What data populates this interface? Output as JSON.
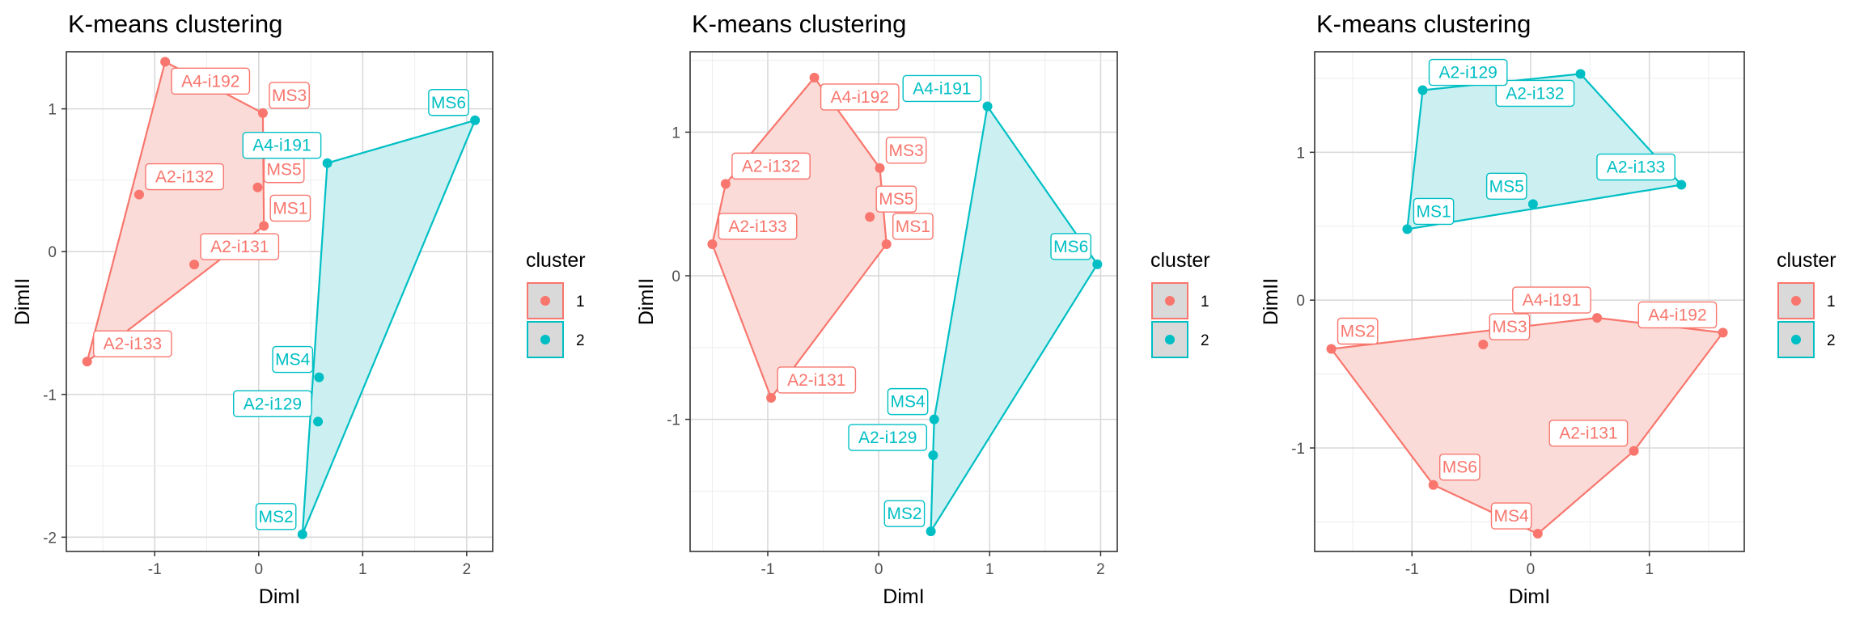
{
  "colors": {
    "cluster1": "#F8766D",
    "cluster2": "#00BFC4",
    "cluster1_fill": "#FADBD8",
    "cluster2_fill": "#CCF0F1",
    "grid_major": "#D9D9D9",
    "grid_minor": "#EDEDED",
    "axis": "#333333",
    "legend_key_bg": "#D9D9D9"
  },
  "chart_data": [
    {
      "type": "scatter",
      "title": "K-means clustering",
      "xlabel": "DimI",
      "ylabel": "DimII",
      "xlim": [
        -1.85,
        2.25
      ],
      "ylim": [
        -2.1,
        1.4
      ],
      "xticks": [
        -1,
        0,
        1,
        2
      ],
      "yticks": [
        -2,
        -1,
        0,
        1
      ],
      "grid": true,
      "legend": {
        "title": "cluster",
        "entries": [
          "1",
          "2"
        ],
        "position": "right"
      },
      "series": [
        {
          "name": "1",
          "points": [
            {
              "label": "A4-i192",
              "x": -0.9,
              "y": 1.33
            },
            {
              "label": "MS3",
              "x": 0.04,
              "y": 0.97
            },
            {
              "label": "MS5",
              "x": -0.01,
              "y": 0.45
            },
            {
              "label": "A2-i132",
              "x": -1.15,
              "y": 0.4
            },
            {
              "label": "MS1",
              "x": 0.05,
              "y": 0.18
            },
            {
              "label": "A2-i131",
              "x": -0.62,
              "y": -0.09
            },
            {
              "label": "A2-i133",
              "x": -1.65,
              "y": -0.77
            }
          ]
        },
        {
          "name": "2",
          "points": [
            {
              "label": "MS6",
              "x": 2.08,
              "y": 0.92
            },
            {
              "label": "A4-i191",
              "x": 0.66,
              "y": 0.62
            },
            {
              "label": "MS4",
              "x": 0.58,
              "y": -0.88
            },
            {
              "label": "A2-i129",
              "x": 0.57,
              "y": -1.19
            },
            {
              "label": "MS2",
              "x": 0.42,
              "y": -1.98
            }
          ]
        }
      ]
    },
    {
      "type": "scatter",
      "title": "K-means clustering",
      "xlabel": "DimI",
      "ylabel": "DimII",
      "xlim": [
        -1.7,
        2.15
      ],
      "ylim": [
        -1.92,
        1.56
      ],
      "xticks": [
        -1,
        0,
        1,
        2
      ],
      "yticks": [
        -1,
        0,
        1
      ],
      "grid": true,
      "legend": {
        "title": "cluster",
        "entries": [
          "1",
          "2"
        ],
        "position": "right"
      },
      "series": [
        {
          "name": "1",
          "points": [
            {
              "label": "A4-i192",
              "x": -0.58,
              "y": 1.38
            },
            {
              "label": "MS3",
              "x": 0.01,
              "y": 0.75
            },
            {
              "label": "A2-i132",
              "x": -1.38,
              "y": 0.64
            },
            {
              "label": "MS5",
              "x": -0.08,
              "y": 0.41
            },
            {
              "label": "A2-i133",
              "x": -1.5,
              "y": 0.22
            },
            {
              "label": "MS1",
              "x": 0.07,
              "y": 0.22
            },
            {
              "label": "A2-i131",
              "x": -0.97,
              "y": -0.85
            }
          ]
        },
        {
          "name": "2",
          "points": [
            {
              "label": "A4-i191",
              "x": 0.98,
              "y": 1.18
            },
            {
              "label": "MS6",
              "x": 1.97,
              "y": 0.08
            },
            {
              "label": "MS4",
              "x": 0.5,
              "y": -1.0
            },
            {
              "label": "A2-i129",
              "x": 0.49,
              "y": -1.25
            },
            {
              "label": "MS2",
              "x": 0.47,
              "y": -1.78
            }
          ]
        }
      ]
    },
    {
      "type": "scatter",
      "title": "K-means clustering",
      "xlabel": "DimI",
      "ylabel": "DimII",
      "xlim": [
        -1.82,
        1.8
      ],
      "ylim": [
        -1.7,
        1.68
      ],
      "xticks": [
        -1,
        0,
        1
      ],
      "yticks": [
        -1,
        0,
        1
      ],
      "grid": true,
      "legend": {
        "title": "cluster",
        "entries": [
          "1",
          "2"
        ],
        "position": "right"
      },
      "series": [
        {
          "name": "1",
          "points": [
            {
              "label": "A4-i191",
              "x": 0.56,
              "y": -0.12
            },
            {
              "label": "A4-i192",
              "x": 1.62,
              "y": -0.22
            },
            {
              "label": "MS3",
              "x": -0.4,
              "y": -0.3
            },
            {
              "label": "MS2",
              "x": -1.68,
              "y": -0.33
            },
            {
              "label": "A2-i131",
              "x": 0.87,
              "y": -1.02
            },
            {
              "label": "MS6",
              "x": -0.82,
              "y": -1.25
            },
            {
              "label": "MS4",
              "x": 0.06,
              "y": -1.58
            }
          ]
        },
        {
          "name": "2",
          "points": [
            {
              "label": "A2-i132",
              "x": 0.42,
              "y": 1.53
            },
            {
              "label": "A2-i129",
              "x": -0.91,
              "y": 1.42
            },
            {
              "label": "A2-i133",
              "x": 1.27,
              "y": 0.78
            },
            {
              "label": "MS5",
              "x": 0.02,
              "y": 0.65
            },
            {
              "label": "MS1",
              "x": -1.04,
              "y": 0.48
            }
          ]
        }
      ]
    }
  ]
}
